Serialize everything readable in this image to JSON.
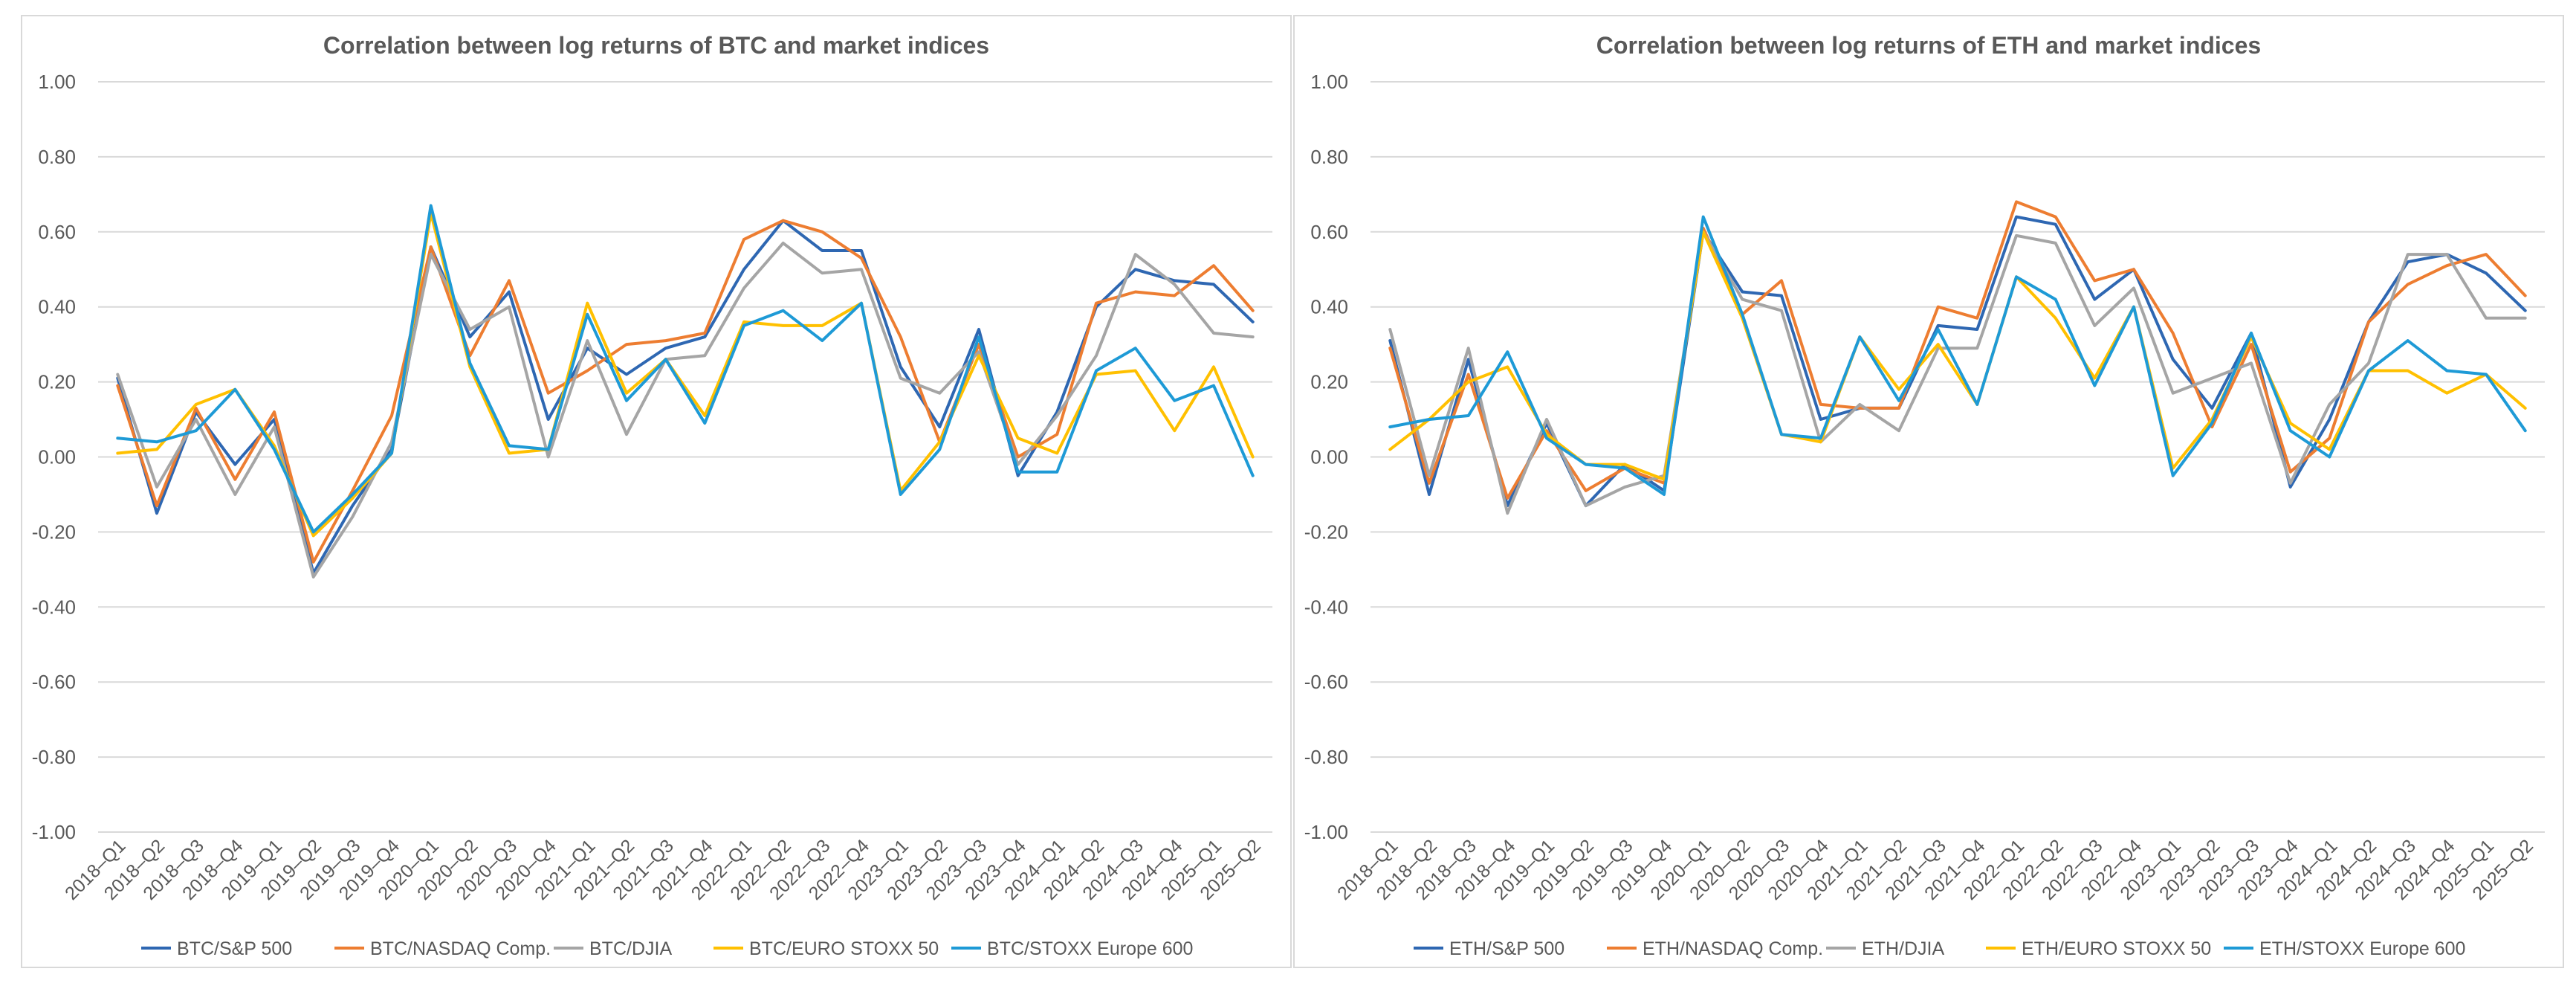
{
  "chart_data": [
    {
      "type": "line",
      "title": "Correlation between log returns of BTC and market indices",
      "xlabel": "",
      "ylabel": "",
      "ylim": [
        -1.0,
        1.0
      ],
      "y_ticks": [
        "1.00",
        "0.80",
        "0.60",
        "0.40",
        "0.20",
        "0.00",
        "-0.20",
        "-0.40",
        "-0.60",
        "-0.80",
        "-1.00"
      ],
      "grid": true,
      "legend_position": "bottom",
      "categories": [
        "2018–Q1",
        "2018–Q2",
        "2018–Q3",
        "2018–Q4",
        "2019–Q1",
        "2019–Q2",
        "2019–Q3",
        "2019–Q4",
        "2020–Q1",
        "2020–Q2",
        "2020–Q3",
        "2020–Q4",
        "2021–Q1",
        "2021–Q2",
        "2021–Q3",
        "2021–Q4",
        "2022–Q1",
        "2022–Q2",
        "2022–Q3",
        "2022–Q4",
        "2023–Q1",
        "2023–Q2",
        "2023–Q3",
        "2023–Q4",
        "2024–Q1",
        "2024–Q2",
        "2024–Q3",
        "2024–Q4",
        "2025–Q1",
        "2025–Q2"
      ],
      "series": [
        {
          "name": "BTC/S&P 500",
          "color": "#2e67b2",
          "values": [
            0.21,
            -0.15,
            0.12,
            -0.02,
            0.1,
            -0.31,
            -0.13,
            0.02,
            0.56,
            0.32,
            0.44,
            0.1,
            0.29,
            0.22,
            0.29,
            0.32,
            0.5,
            0.63,
            0.55,
            0.55,
            0.24,
            0.08,
            0.34,
            -0.05,
            0.12,
            0.4,
            0.5,
            0.47,
            0.46,
            0.36
          ]
        },
        {
          "name": "BTC/NASDAQ Comp.",
          "color": "#ed7d31",
          "values": [
            0.19,
            -0.13,
            0.13,
            -0.06,
            0.12,
            -0.28,
            -0.09,
            0.11,
            0.56,
            0.27,
            0.47,
            0.17,
            0.23,
            0.3,
            0.31,
            0.33,
            0.58,
            0.63,
            0.6,
            0.53,
            0.32,
            0.04,
            0.3,
            0.0,
            0.06,
            0.41,
            0.44,
            0.43,
            0.51,
            0.39
          ]
        },
        {
          "name": "BTC/DJIA",
          "color": "#a5a5a5",
          "values": [
            0.22,
            -0.08,
            0.1,
            -0.1,
            0.08,
            -0.32,
            -0.16,
            0.04,
            0.54,
            0.34,
            0.4,
            0.0,
            0.31,
            0.06,
            0.26,
            0.27,
            0.45,
            0.57,
            0.49,
            0.5,
            0.21,
            0.17,
            0.28,
            -0.02,
            0.11,
            0.27,
            0.54,
            0.46,
            0.33,
            0.32
          ]
        },
        {
          "name": "BTC/EURO STOXX 50",
          "color": "#ffc000",
          "values": [
            0.01,
            0.02,
            0.14,
            0.18,
            0.03,
            -0.21,
            -0.11,
            0.01,
            0.65,
            0.24,
            0.01,
            0.02,
            0.41,
            0.17,
            0.26,
            0.11,
            0.36,
            0.35,
            0.35,
            0.41,
            -0.09,
            0.04,
            0.27,
            0.05,
            0.01,
            0.22,
            0.23,
            0.07,
            0.24,
            0.0
          ]
        },
        {
          "name": "BTC/STOXX Europe 600",
          "color": "#1e9ad6",
          "values": [
            0.05,
            0.04,
            0.07,
            0.18,
            0.02,
            -0.2,
            -0.1,
            0.01,
            0.67,
            0.25,
            0.03,
            0.02,
            0.38,
            0.15,
            0.26,
            0.09,
            0.35,
            0.39,
            0.31,
            0.41,
            -0.1,
            0.02,
            0.32,
            -0.04,
            -0.04,
            0.23,
            0.29,
            0.15,
            0.19,
            -0.05
          ]
        }
      ]
    },
    {
      "type": "line",
      "title": "Correlation between log returns of ETH and market indices",
      "xlabel": "",
      "ylabel": "",
      "ylim": [
        -1.0,
        1.0
      ],
      "y_ticks": [
        "1.00",
        "0.80",
        "0.60",
        "0.40",
        "0.20",
        "0.00",
        "-0.20",
        "-0.40",
        "-0.60",
        "-0.80",
        "-1.00"
      ],
      "grid": true,
      "legend_position": "bottom",
      "categories": [
        "2018–Q1",
        "2018–Q2",
        "2018–Q3",
        "2018–Q4",
        "2019–Q1",
        "2019–Q2",
        "2019–Q3",
        "2019–Q4",
        "2020–Q1",
        "2020–Q2",
        "2020–Q3",
        "2020–Q4",
        "2021–Q1",
        "2021–Q2",
        "2021–Q3",
        "2021–Q4",
        "2022–Q1",
        "2022–Q2",
        "2022–Q3",
        "2022–Q4",
        "2023–Q1",
        "2023–Q2",
        "2023–Q3",
        "2023–Q4",
        "2024–Q1",
        "2024–Q2",
        "2024–Q3",
        "2024–Q4",
        "2025–Q1",
        "2025–Q2"
      ],
      "series": [
        {
          "name": "ETH/S&P 500",
          "color": "#2e67b2",
          "values": [
            0.31,
            -0.1,
            0.26,
            -0.13,
            0.09,
            -0.13,
            -0.02,
            -0.09,
            0.6,
            0.44,
            0.43,
            0.1,
            0.13,
            0.13,
            0.35,
            0.34,
            0.64,
            0.62,
            0.42,
            0.5,
            0.26,
            0.13,
            0.33,
            -0.08,
            0.1,
            0.36,
            0.52,
            0.54,
            0.49,
            0.39
          ]
        },
        {
          "name": "ETH/NASDAQ Comp.",
          "color": "#ed7d31",
          "values": [
            0.29,
            -0.07,
            0.22,
            -0.11,
            0.07,
            -0.09,
            -0.03,
            -0.07,
            0.61,
            0.38,
            0.47,
            0.14,
            0.13,
            0.13,
            0.4,
            0.37,
            0.68,
            0.64,
            0.47,
            0.5,
            0.33,
            0.08,
            0.3,
            -0.04,
            0.05,
            0.36,
            0.46,
            0.51,
            0.54,
            0.43
          ]
        },
        {
          "name": "ETH/DJIA",
          "color": "#a5a5a5",
          "values": [
            0.34,
            -0.05,
            0.29,
            -0.15,
            0.1,
            -0.13,
            -0.08,
            -0.05,
            0.6,
            0.42,
            0.39,
            0.04,
            0.14,
            0.07,
            0.29,
            0.29,
            0.59,
            0.57,
            0.35,
            0.45,
            0.17,
            0.21,
            0.25,
            -0.07,
            0.14,
            0.25,
            0.54,
            0.54,
            0.37,
            0.37
          ]
        },
        {
          "name": "ETH/EURO STOXX 50",
          "color": "#ffc000",
          "values": [
            0.02,
            0.1,
            0.2,
            0.24,
            0.06,
            -0.02,
            -0.02,
            -0.06,
            0.6,
            0.37,
            0.06,
            0.04,
            0.32,
            0.18,
            0.3,
            0.14,
            0.48,
            0.37,
            0.21,
            0.4,
            -0.03,
            0.1,
            0.32,
            0.09,
            0.02,
            0.23,
            0.23,
            0.17,
            0.22,
            0.13
          ]
        },
        {
          "name": "ETH/STOXX Europe 600",
          "color": "#1e9ad6",
          "values": [
            0.08,
            0.1,
            0.11,
            0.28,
            0.05,
            -0.02,
            -0.03,
            -0.1,
            0.64,
            0.38,
            0.06,
            0.05,
            0.32,
            0.15,
            0.34,
            0.14,
            0.48,
            0.42,
            0.19,
            0.4,
            -0.05,
            0.09,
            0.33,
            0.07,
            0.0,
            0.23,
            0.31,
            0.23,
            0.22,
            0.07
          ]
        }
      ]
    }
  ]
}
